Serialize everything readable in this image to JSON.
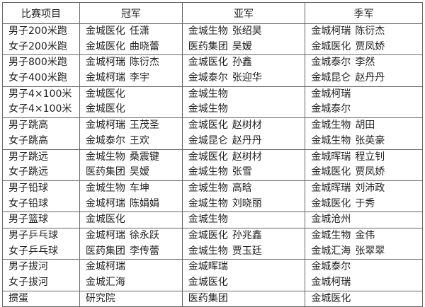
{
  "headers": [
    "比赛项目",
    "冠军",
    "亚军",
    "季军"
  ],
  "groups": [
    {
      "events": [
        "男子200米跑",
        "女子200米跑"
      ],
      "champion": [
        [
          "金城医化",
          "任潇"
        ],
        [
          "金城医化",
          "曲晓蕾"
        ]
      ],
      "runner_up": [
        [
          "金城生物",
          "张绍昊"
        ],
        [
          "医药集团",
          "吴嫒"
        ]
      ],
      "third": [
        [
          "金城柯瑞",
          "陈衍杰"
        ],
        [
          "金城医化",
          "贾凤娇"
        ]
      ]
    },
    {
      "events": [
        "男子800米跑",
        "女子400米跑"
      ],
      "champion": [
        [
          "金城柯瑞",
          "陈衍杰"
        ],
        [
          "金城柯瑞",
          "李宇"
        ]
      ],
      "runner_up": [
        [
          "金城医化",
          "孙鑫"
        ],
        [
          "金城泰尔",
          "张迎华"
        ]
      ],
      "third": [
        [
          "金城泰尔",
          "李然"
        ],
        [
          "金城昆仑",
          "赵丹丹"
        ]
      ]
    },
    {
      "events": [
        "男子4×100米",
        "女子4×100米"
      ],
      "champion": [
        [
          "金城医化",
          ""
        ],
        [
          "金城医化",
          ""
        ]
      ],
      "runner_up": [
        [
          "金城生物",
          ""
        ],
        [
          "金城生物",
          ""
        ]
      ],
      "third": [
        [
          "金城柯瑞",
          ""
        ],
        [
          "金城泰尔",
          ""
        ]
      ]
    },
    {
      "events": [
        "男子跳高",
        "女子跳高"
      ],
      "champion": [
        [
          "金城柯瑞",
          "王茂圣"
        ],
        [
          "金城泰尔",
          "王欢"
        ]
      ],
      "runner_up": [
        [
          "金城医化",
          "赵树材"
        ],
        [
          "金城昆仑",
          "赵丹丹"
        ]
      ],
      "third": [
        [
          "金城生物",
          "胡田"
        ],
        [
          "金城生物",
          "张英豪"
        ]
      ]
    },
    {
      "events": [
        "男子跳远",
        "女子跳远"
      ],
      "champion": [
        [
          "金城生物",
          "桑震键"
        ],
        [
          "医药集团",
          "吴嫒"
        ]
      ],
      "runner_up": [
        [
          "金城医化",
          "赵树材"
        ],
        [
          "金城生物",
          "张雪"
        ]
      ],
      "third": [
        [
          "金城晖瑞",
          "程立钊"
        ],
        [
          "金城医化",
          "贾凤娇"
        ]
      ]
    },
    {
      "events": [
        "男子铅球",
        "女子铅球"
      ],
      "champion": [
        [
          "金城生物",
          "车坤"
        ],
        [
          "金城柯瑞",
          "陈娟娟"
        ]
      ],
      "runner_up": [
        [
          "金城生物",
          "高晗"
        ],
        [
          "金城生物",
          "刘晓丽"
        ]
      ],
      "third": [
        [
          "金城晖瑞",
          "刘沛政"
        ],
        [
          "金城医化",
          "于秀"
        ]
      ]
    },
    {
      "events": [
        "男子篮球"
      ],
      "champion": [
        [
          "金城医化",
          ""
        ]
      ],
      "runner_up": [
        [
          "金城生物",
          ""
        ]
      ],
      "third": [
        [
          "金城沧州",
          ""
        ]
      ]
    },
    {
      "events": [
        "男子乒乓球",
        "女子乒乓球"
      ],
      "champion": [
        [
          "金城柯瑞",
          "徐永跃"
        ],
        [
          "医药集团",
          "李传蕾"
        ]
      ],
      "runner_up": [
        [
          "金城医化",
          "孙兆鑫"
        ],
        [
          "金城生物",
          "贾玉廷"
        ]
      ],
      "third": [
        [
          "金城生物",
          "金伟"
        ],
        [
          "金城汇海",
          "张翠翠"
        ]
      ]
    },
    {
      "events": [
        "男子拔河",
        "女子拔河"
      ],
      "champion": [
        [
          "金城柯瑞",
          ""
        ],
        [
          "金城汇海",
          ""
        ]
      ],
      "runner_up": [
        [
          "金城晖瑞",
          ""
        ],
        [
          "金城医化",
          ""
        ]
      ],
      "third": [
        [
          "金城泰尔",
          ""
        ],
        [
          "金城柯瑞",
          ""
        ]
      ]
    },
    {
      "events": [
        "掼蛋"
      ],
      "champion": [
        [
          "研究院",
          ""
        ]
      ],
      "runner_up": [
        [
          "医药集团",
          ""
        ]
      ],
      "third": [
        [
          "金城医化",
          ""
        ]
      ]
    }
  ]
}
